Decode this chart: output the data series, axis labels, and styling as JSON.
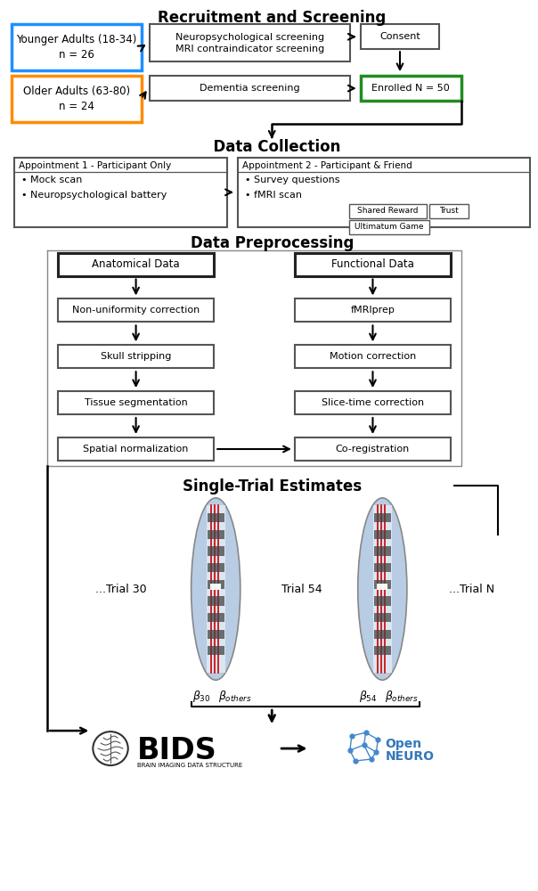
{
  "bg_color": "#ffffff",
  "section1_title": "Recruitment and Screening",
  "section2_title": "Data Collection",
  "section3_title": "Data Preprocessing",
  "section4_title": "Single-Trial Estimates",
  "younger_text": "Younger Adults (18-34)\nn = 26",
  "older_text": "Older Adults (63-80)\nn = 24",
  "neuro_text": "Neuropsychological screening\nMRI contraindicator screening",
  "dementia_text": "Dementia screening",
  "consent_text": "Consent",
  "enrolled_text": "Enrolled N = 50",
  "appt1_title": "Appointment 1 - Participant Only",
  "appt1_bullets": "• Mock scan\n• Neuropsychological battery",
  "appt2_title": "Appointment 2 - Participant & Friend",
  "appt2_bullets": "• Survey questions\n• fMRI scan",
  "task_boxes": [
    "Shared Reward",
    "Trust",
    "Ultimatum Game"
  ],
  "anat_text": "Anatomical Data",
  "func_text": "Functional Data",
  "anat_steps": [
    "Non-uniformity correction",
    "Skull stripping",
    "Tissue segmentation"
  ],
  "func_steps": [
    "fMRIprep",
    "Motion correction",
    "Slice-time correction"
  ],
  "spatial_text": "Spatial normalization",
  "coreg_text": "Co-registration",
  "trial_labels": [
    "...Trial 30",
    "Trial 54",
    "...Trial N"
  ],
  "younger_color": "#1e90ff",
  "older_color": "#ff8c00",
  "enrolled_color": "#228b22",
  "bids_text": "BIDS",
  "bids_sub": "BRAIN IMAGING DATA STRUCTURE",
  "openneuro_text": "OpenNEURO"
}
